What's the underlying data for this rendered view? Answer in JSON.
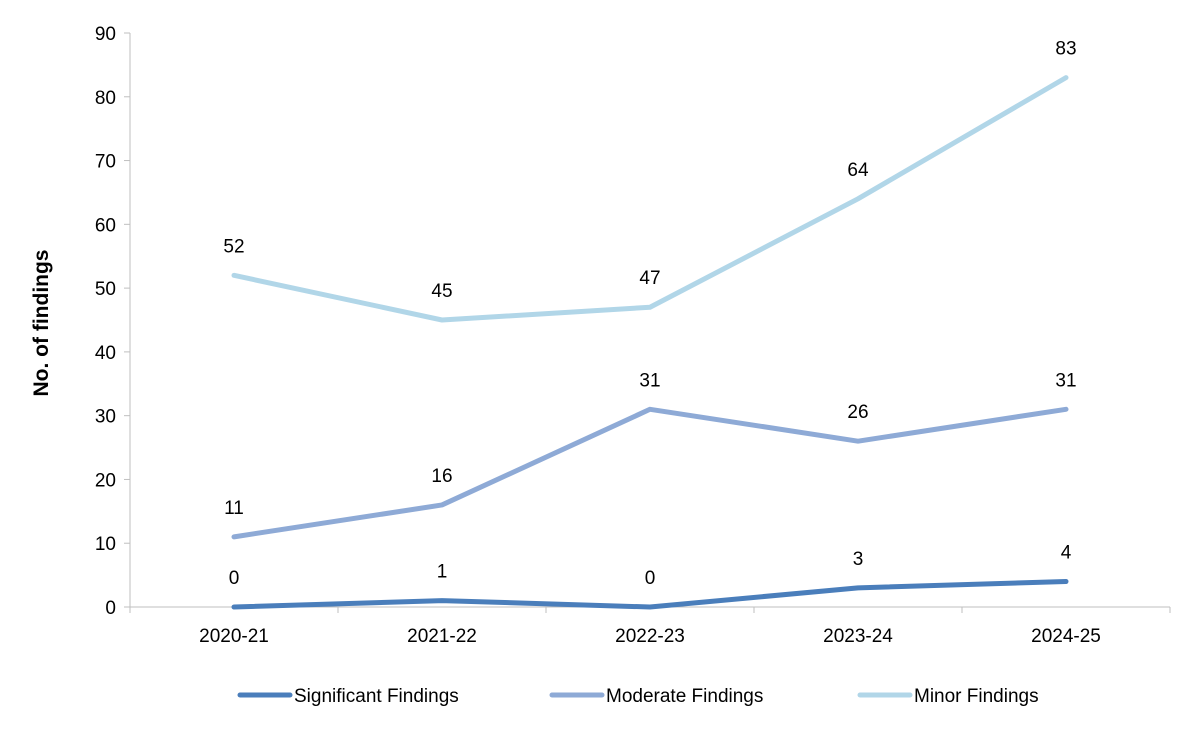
{
  "chart_data": {
    "type": "line",
    "categories": [
      "2020-21",
      "2021-22",
      "2022-23",
      "2023-24",
      "2024-25"
    ],
    "series": [
      {
        "name": "Significant Findings",
        "values": [
          0,
          1,
          0,
          3,
          4
        ],
        "color": "#4a7ebb"
      },
      {
        "name": "Moderate Findings",
        "values": [
          11,
          16,
          31,
          26,
          31
        ],
        "color": "#8eaad6"
      },
      {
        "name": "Minor Findings",
        "values": [
          52,
          45,
          47,
          64,
          83
        ],
        "color": "#b1d6e8"
      }
    ],
    "ylabel": "No. of findings",
    "xlabel": "",
    "ylim": [
      0,
      90
    ],
    "yticks": [
      0,
      10,
      20,
      30,
      40,
      50,
      60,
      70,
      80,
      90
    ],
    "grid": false,
    "legend_position": "bottom",
    "data_labels": true
  }
}
